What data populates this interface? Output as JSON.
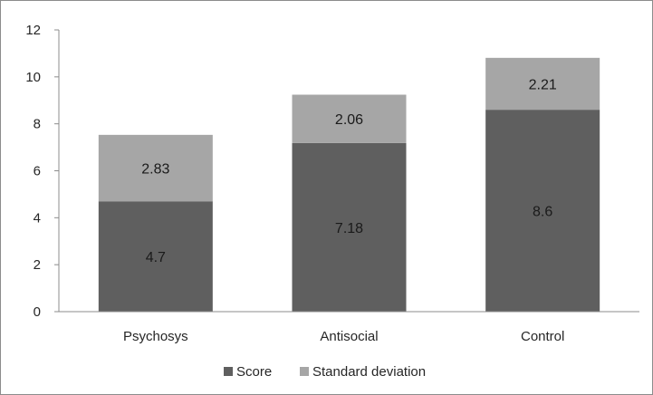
{
  "chart_data": {
    "type": "bar",
    "stacked": true,
    "categories": [
      "Psychosys",
      "Antisocial",
      "Control"
    ],
    "series": [
      {
        "name": "Score",
        "values": [
          4.7,
          7.18,
          8.6
        ],
        "color": "#5f5f5f"
      },
      {
        "name": "Standard deviation",
        "values": [
          2.83,
          2.06,
          2.21
        ],
        "color": "#a6a6a6"
      }
    ],
    "data_labels": [
      [
        "4.7",
        "7.18",
        "8.6"
      ],
      [
        "2.83",
        "2.06",
        "2.21"
      ]
    ],
    "yticks": [
      "0",
      "2",
      "4",
      "6",
      "8",
      "10",
      "12"
    ],
    "ylim": [
      0,
      12
    ],
    "grid": false,
    "legend_position": "bottom",
    "title": "",
    "xlabel": "",
    "ylabel": ""
  }
}
